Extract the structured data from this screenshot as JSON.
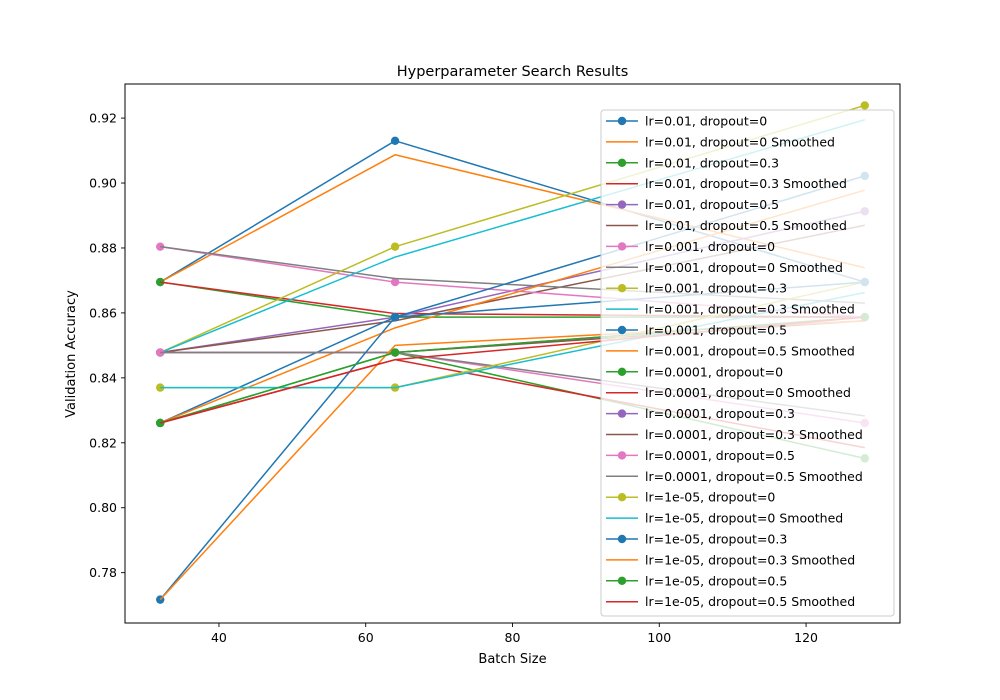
{
  "chart_data": {
    "type": "line",
    "title": "Hyperparameter Search Results",
    "xlabel": "Batch Size",
    "ylabel": "Validation Accuracy",
    "xlim": [
      27.2,
      132.8
    ],
    "ylim": [
      0.7645,
      0.9305
    ],
    "xticks": [
      40,
      60,
      80,
      100,
      120
    ],
    "yticks": [
      0.78,
      0.8,
      0.82,
      0.84,
      0.86,
      0.88,
      0.9,
      0.92
    ],
    "grid": false,
    "legend_position": "upper-right",
    "x": [
      32,
      64,
      128
    ],
    "series": [
      {
        "name": "lr=0.01, dropout=0",
        "color": "#1f77b4",
        "marker": true,
        "values": [
          0.8695,
          0.913,
          0.8695
        ]
      },
      {
        "name": "lr=0.01, dropout=0 Smoothed",
        "color": "#ff7f0e",
        "marker": false,
        "values": [
          0.8695,
          0.9087,
          0.8739
        ]
      },
      {
        "name": "lr=0.01, dropout=0.3",
        "color": "#2ca02c",
        "marker": true,
        "values": [
          0.8695,
          0.8587,
          0.8587
        ]
      },
      {
        "name": "lr=0.01, dropout=0.3 Smoothed",
        "color": "#d62728",
        "marker": false,
        "values": [
          0.8695,
          0.8598,
          0.8587
        ]
      },
      {
        "name": "lr=0.01, dropout=0.5",
        "color": "#9467bd",
        "marker": true,
        "values": [
          0.8478,
          0.8587,
          0.8913
        ]
      },
      {
        "name": "lr=0.01, dropout=0.5 Smoothed",
        "color": "#8c564b",
        "marker": false,
        "values": [
          0.8478,
          0.8576,
          0.887
        ]
      },
      {
        "name": "lr=0.001, dropout=0",
        "color": "#e377c2",
        "marker": true,
        "values": [
          0.8804,
          0.8695,
          0.8587
        ]
      },
      {
        "name": "lr=0.001, dropout=0 Smoothed",
        "color": "#7f7f7f",
        "marker": false,
        "values": [
          0.8804,
          0.8706,
          0.863
        ]
      },
      {
        "name": "lr=0.001, dropout=0.3",
        "color": "#bcbd22",
        "marker": true,
        "values": [
          0.8478,
          0.8804,
          0.9239
        ]
      },
      {
        "name": "lr=0.001, dropout=0.3 Smoothed",
        "color": "#17becf",
        "marker": false,
        "values": [
          0.8478,
          0.8772,
          0.9195
        ]
      },
      {
        "name": "lr=0.001, dropout=0.5",
        "color": "#1f77b4",
        "marker": true,
        "values": [
          0.8261,
          0.8587,
          0.9022
        ]
      },
      {
        "name": "lr=0.001, dropout=0.5 Smoothed",
        "color": "#ff7f0e",
        "marker": false,
        "values": [
          0.8261,
          0.8554,
          0.8978
        ]
      },
      {
        "name": "lr=0.0001, dropout=0",
        "color": "#2ca02c",
        "marker": true,
        "values": [
          0.8261,
          0.8478,
          0.8152
        ]
      },
      {
        "name": "lr=0.0001, dropout=0 Smoothed",
        "color": "#d62728",
        "marker": false,
        "values": [
          0.8261,
          0.8456,
          0.8185
        ]
      },
      {
        "name": "lr=0.0001, dropout=0.3",
        "color": "#9467bd",
        "marker": true,
        "values": [
          0.8478,
          0.8478,
          0.8587
        ]
      },
      {
        "name": "lr=0.0001, dropout=0.3 Smoothed",
        "color": "#8c564b",
        "marker": false,
        "values": [
          0.8478,
          0.8478,
          0.8576
        ]
      },
      {
        "name": "lr=0.0001, dropout=0.5",
        "color": "#e377c2",
        "marker": true,
        "values": [
          0.8478,
          0.8478,
          0.8261
        ]
      },
      {
        "name": "lr=0.0001, dropout=0.5 Smoothed",
        "color": "#7f7f7f",
        "marker": false,
        "values": [
          0.8478,
          0.8478,
          0.8283
        ]
      },
      {
        "name": "lr=1e-05, dropout=0",
        "color": "#bcbd22",
        "marker": true,
        "values": [
          0.837,
          0.837,
          0.8695
        ]
      },
      {
        "name": "lr=1e-05, dropout=0 Smoothed",
        "color": "#17becf",
        "marker": false,
        "values": [
          0.837,
          0.837,
          0.8663
        ]
      },
      {
        "name": "lr=1e-05, dropout=0.3",
        "color": "#1f77b4",
        "marker": true,
        "values": [
          0.7717,
          0.8587,
          0.8695
        ]
      },
      {
        "name": "lr=1e-05, dropout=0.3 Smoothed",
        "color": "#ff7f0e",
        "marker": false,
        "values": [
          0.7717,
          0.85,
          0.8576
        ]
      },
      {
        "name": "lr=1e-05, dropout=0.5",
        "color": "#2ca02c",
        "marker": true,
        "values": [
          0.8261,
          0.8478,
          0.8587
        ]
      },
      {
        "name": "lr=1e-05, dropout=0.5 Smoothed",
        "color": "#d62728",
        "marker": false,
        "values": [
          0.8261,
          0.8456,
          0.8587
        ]
      }
    ]
  }
}
